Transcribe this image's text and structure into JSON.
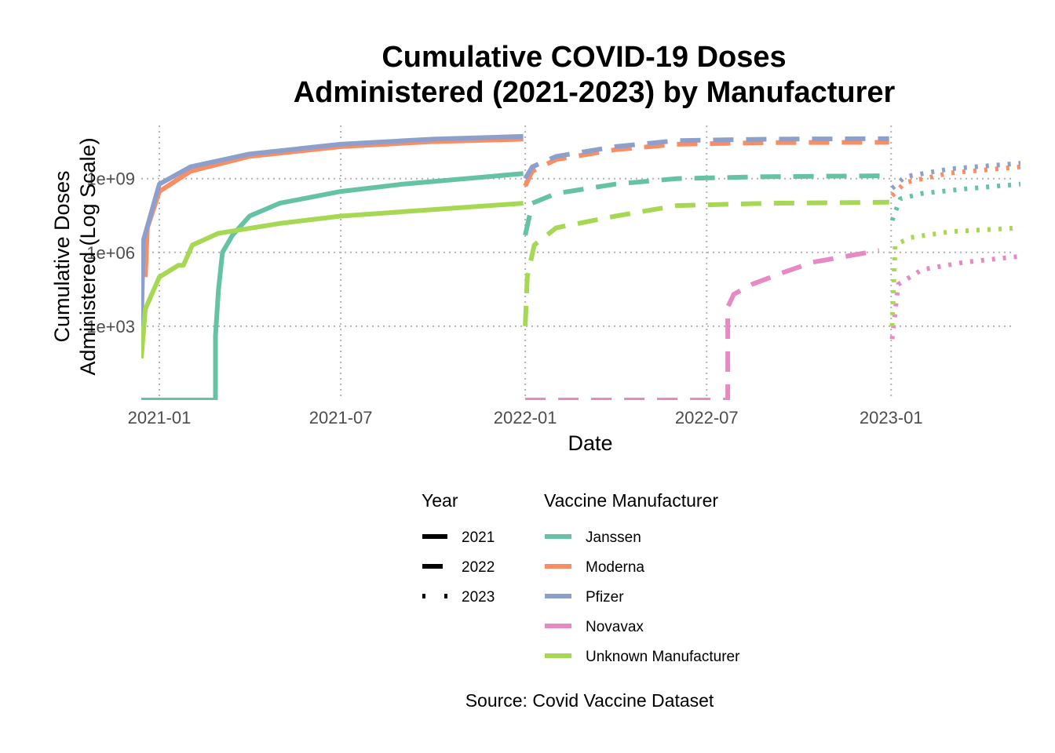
{
  "chart_data": {
    "type": "line",
    "title_line1": "Cumulative COVID-19 Doses",
    "title_line2": "Administered (2021-2023) by Manufacturer",
    "xlabel": "Date",
    "ylabel_line1": "Cumulative Doses",
    "ylabel_line2": "Administered (Log Scale)",
    "caption": "Source: Covid Vaccine Dataset",
    "y_scale": "log10",
    "ylim": [
      1,
      300000000000.0
    ],
    "xlim": [
      "2020-12-14",
      "2023-05-10"
    ],
    "x_ticks": [
      {
        "date": "2021-01-01",
        "label": "2021-01"
      },
      {
        "date": "2021-07-01",
        "label": "2021-07"
      },
      {
        "date": "2022-01-01",
        "label": "2022-01"
      },
      {
        "date": "2022-07-01",
        "label": "2022-07"
      },
      {
        "date": "2023-01-01",
        "label": "2023-01"
      }
    ],
    "y_ticks": [
      {
        "value": 1000,
        "label": "1e+03"
      },
      {
        "value": 1000000,
        "label": "1e+06"
      },
      {
        "value": 1000000000,
        "label": "1e+09"
      }
    ],
    "grid": true,
    "legend_position": "bottom",
    "legend_year_title": "Year",
    "legend_year": [
      {
        "label": "2021",
        "dash": "solid"
      },
      {
        "label": "2022",
        "dash": "longdash"
      },
      {
        "label": "2023",
        "dash": "dotted"
      }
    ],
    "legend_color_title": "Vaccine Manufacturer",
    "series": [
      {
        "name": "Janssen",
        "color": "#66c2a5",
        "segments": [
          {
            "year": "2021",
            "points": [
              [
                "2020-12-14",
                1
              ],
              [
                "2021-02-26",
                1
              ],
              [
                "2021-02-26",
                400
              ],
              [
                "2021-03-01",
                30000
              ],
              [
                "2021-03-05",
                1000000
              ],
              [
                "2021-03-15",
                5000000
              ],
              [
                "2021-04-01",
                30000000
              ],
              [
                "2021-05-01",
                100000000
              ],
              [
                "2021-07-01",
                300000000
              ],
              [
                "2021-09-01",
                600000000
              ],
              [
                "2021-12-30",
                1600000000
              ]
            ]
          },
          {
            "year": "2022",
            "points": [
              [
                "2022-01-01",
                5000000
              ],
              [
                "2022-01-08",
                100000000
              ],
              [
                "2022-02-01",
                250000000
              ],
              [
                "2022-04-01",
                600000000
              ],
              [
                "2022-06-01",
                1000000000
              ],
              [
                "2022-09-01",
                1200000000
              ],
              [
                "2022-12-30",
                1300000000
              ]
            ]
          },
          {
            "year": "2023",
            "points": [
              [
                "2023-01-02",
                20000000
              ],
              [
                "2023-01-10",
                150000000
              ],
              [
                "2023-02-01",
                250000000
              ],
              [
                "2023-03-15",
                380000000
              ],
              [
                "2023-05-10",
                600000000
              ]
            ]
          }
        ]
      },
      {
        "name": "Moderna",
        "color": "#fc8d62",
        "segments": [
          {
            "year": "2021",
            "points": [
              [
                "2020-12-18",
                100000
              ],
              [
                "2020-12-20",
                10000000
              ],
              [
                "2021-01-01",
                300000000
              ],
              [
                "2021-02-01",
                2000000000
              ],
              [
                "2021-04-01",
                8000000000
              ],
              [
                "2021-07-01",
                20000000000
              ],
              [
                "2021-10-01",
                32000000000
              ],
              [
                "2021-12-30",
                40000000000
              ]
            ]
          },
          {
            "year": "2022",
            "points": [
              [
                "2022-01-01",
                500000000
              ],
              [
                "2022-01-08",
                2000000000
              ],
              [
                "2022-02-01",
                6000000000
              ],
              [
                "2022-04-01",
                15000000000
              ],
              [
                "2022-06-01",
                25000000000
              ],
              [
                "2022-09-01",
                29000000000
              ],
              [
                "2022-12-30",
                30000000000
              ]
            ]
          },
          {
            "year": "2023",
            "points": [
              [
                "2023-01-02",
                200000000
              ],
              [
                "2023-01-15",
                700000000
              ],
              [
                "2023-03-01",
                1700000000
              ],
              [
                "2023-05-10",
                3000000000
              ]
            ]
          }
        ]
      },
      {
        "name": "Pfizer",
        "color": "#8da0cb",
        "segments": [
          {
            "year": "2021",
            "points": [
              [
                "2020-12-14",
                1000
              ],
              [
                "2020-12-16",
                3000000
              ],
              [
                "2021-01-01",
                600000000
              ],
              [
                "2021-02-01",
                3000000000
              ],
              [
                "2021-04-01",
                10000000000
              ],
              [
                "2021-07-01",
                25000000000
              ],
              [
                "2021-10-01",
                40000000000
              ],
              [
                "2021-12-30",
                52000000000
              ]
            ]
          },
          {
            "year": "2022",
            "points": [
              [
                "2022-01-01",
                1000000000
              ],
              [
                "2022-01-08",
                3000000000
              ],
              [
                "2022-02-01",
                8000000000
              ],
              [
                "2022-04-01",
                20000000000
              ],
              [
                "2022-06-01",
                35000000000
              ],
              [
                "2022-09-01",
                40000000000
              ],
              [
                "2022-12-30",
                42000000000
              ]
            ]
          },
          {
            "year": "2023",
            "points": [
              [
                "2023-01-02",
                400000000
              ],
              [
                "2023-01-15",
                1200000000
              ],
              [
                "2023-03-01",
                2500000000
              ],
              [
                "2023-05-10",
                4200000000
              ]
            ]
          }
        ]
      },
      {
        "name": "Novavax",
        "color": "#e78ac3",
        "segments": [
          {
            "year": "2022",
            "points": [
              [
                "2022-01-01",
                1
              ],
              [
                "2022-07-22",
                1
              ],
              [
                "2022-07-22",
                6000
              ],
              [
                "2022-07-28",
                20000
              ],
              [
                "2022-08-15",
                50000
              ],
              [
                "2022-09-15",
                150000
              ],
              [
                "2022-10-15",
                400000
              ],
              [
                "2022-12-20",
                1200000
              ]
            ]
          },
          {
            "year": "2023",
            "points": [
              [
                "2023-01-02",
                300
              ],
              [
                "2023-01-08",
                50000
              ],
              [
                "2023-02-01",
                200000
              ],
              [
                "2023-03-15",
                400000
              ],
              [
                "2023-05-10",
                700000
              ]
            ]
          }
        ]
      },
      {
        "name": "Unknown Manufacturer",
        "color": "#a6d854",
        "segments": [
          {
            "year": "2021",
            "points": [
              [
                "2020-12-14",
                50
              ],
              [
                "2020-12-18",
                5000
              ],
              [
                "2021-01-01",
                100000
              ],
              [
                "2021-01-20",
                300000
              ],
              [
                "2021-01-25",
                300000
              ],
              [
                "2021-02-03",
                2000000
              ],
              [
                "2021-03-01",
                6000000
              ],
              [
                "2021-05-01",
                15000000
              ],
              [
                "2021-07-01",
                30000000
              ],
              [
                "2021-12-30",
                100000000
              ]
            ]
          },
          {
            "year": "2022",
            "points": [
              [
                "2022-01-01",
                1000
              ],
              [
                "2022-01-03",
                100000
              ],
              [
                "2022-01-10",
                2000000
              ],
              [
                "2022-02-01",
                10000000
              ],
              [
                "2022-04-01",
                30000000
              ],
              [
                "2022-06-01",
                80000000
              ],
              [
                "2022-09-01",
                100000000
              ],
              [
                "2022-12-30",
                110000000
              ]
            ]
          },
          {
            "year": "2023",
            "points": [
              [
                "2023-01-02",
                1000
              ],
              [
                "2023-01-05",
                2000000
              ],
              [
                "2023-01-20",
                4000000
              ],
              [
                "2023-03-01",
                7000000
              ],
              [
                "2023-05-10",
                10000000
              ]
            ]
          }
        ]
      }
    ]
  }
}
